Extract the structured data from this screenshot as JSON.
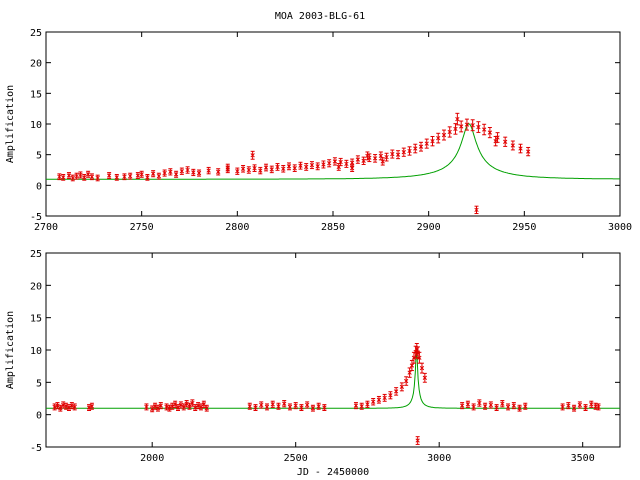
{
  "title": "MOA 2003-BLG-61",
  "colors": {
    "data": "#e00000",
    "model": "#00a000",
    "axis": "#000000"
  },
  "chart_data": [
    {
      "type": "scatter",
      "ylabel": "Amplification",
      "xlabel": "",
      "xlim": [
        2700,
        3000
      ],
      "ylim": [
        -5,
        25
      ],
      "xticks": [
        2700,
        2750,
        2800,
        2850,
        2900,
        2950,
        3000
      ],
      "yticks": [
        -5,
        0,
        5,
        10,
        15,
        20,
        25
      ],
      "model": {
        "t0": 2921,
        "u0": 0.1,
        "tE": 37
      },
      "points": [
        [
          2707,
          1.4
        ],
        [
          2709,
          1.3
        ],
        [
          2712,
          1.6
        ],
        [
          2714,
          1.2
        ],
        [
          2716,
          1.5
        ],
        [
          2718,
          1.7
        ],
        [
          2720,
          1.3
        ],
        [
          2722,
          1.8
        ],
        [
          2724,
          1.4
        ],
        [
          2727,
          1.2
        ],
        [
          2733,
          1.6
        ],
        [
          2737,
          1.3
        ],
        [
          2741,
          1.4
        ],
        [
          2744,
          1.5
        ],
        [
          2748,
          1.6
        ],
        [
          2750,
          1.8
        ],
        [
          2753,
          1.3
        ],
        [
          2756,
          1.9
        ],
        [
          2759,
          1.5
        ],
        [
          2762,
          2.0
        ],
        [
          2765,
          2.2
        ],
        [
          2768,
          1.8
        ],
        [
          2771,
          2.3
        ],
        [
          2774,
          2.5
        ],
        [
          2777,
          2.1
        ],
        [
          2780,
          2.0
        ],
        [
          2785,
          2.4
        ],
        [
          2790,
          2.2
        ],
        [
          2795,
          2.6
        ],
        [
          2800,
          2.3
        ],
        [
          2803,
          2.7
        ],
        [
          2806,
          2.5
        ],
        [
          2809,
          2.8
        ],
        [
          2812,
          2.4
        ],
        [
          2815,
          2.9
        ],
        [
          2818,
          2.6
        ],
        [
          2821,
          3.0
        ],
        [
          2824,
          2.7
        ],
        [
          2827,
          3.1
        ],
        [
          2830,
          2.8
        ],
        [
          2833,
          3.2
        ],
        [
          2836,
          3.0
        ],
        [
          2839,
          3.3
        ],
        [
          2842,
          3.1
        ],
        [
          2845,
          3.4
        ],
        [
          2848,
          3.6
        ],
        [
          2851,
          3.9
        ],
        [
          2854,
          3.8
        ],
        [
          2857,
          3.5
        ],
        [
          2860,
          3.7
        ],
        [
          2863,
          4.2
        ],
        [
          2866,
          4.0
        ],
        [
          2869,
          4.5
        ],
        [
          2872,
          4.4
        ],
        [
          2875,
          4.8
        ],
        [
          2878,
          4.6
        ],
        [
          2881,
          5.1
        ],
        [
          2884,
          5.0
        ],
        [
          2887,
          5.4
        ],
        [
          2890,
          5.6
        ],
        [
          2893,
          6.0
        ],
        [
          2896,
          6.3
        ],
        [
          2899,
          6.8
        ],
        [
          2902,
          7.2
        ],
        [
          2905,
          7.7
        ],
        [
          2908,
          8.2
        ],
        [
          2911,
          8.7
        ],
        [
          2914,
          9.2
        ],
        [
          2917,
          9.6
        ],
        [
          2920,
          9.9
        ],
        [
          2923,
          9.8
        ],
        [
          2926,
          9.5
        ],
        [
          2929,
          9.1
        ],
        [
          2932,
          8.6
        ],
        [
          2936,
          7.8
        ],
        [
          2940,
          7.1
        ],
        [
          2944,
          6.5
        ],
        [
          2948,
          6.0
        ],
        [
          2952,
          5.5
        ],
        [
          2925,
          -4.0
        ],
        [
          2853,
          3.0
        ],
        [
          2860,
          2.8
        ],
        [
          2808,
          4.9
        ],
        [
          2795,
          2.9
        ],
        [
          2868,
          4.8
        ],
        [
          2876,
          3.9
        ],
        [
          2915,
          10.8
        ],
        [
          2935,
          7.2
        ]
      ]
    },
    {
      "type": "scatter",
      "ylabel": "Amplification",
      "xlabel": "JD - 2450000",
      "xlim": [
        1630,
        3630
      ],
      "ylim": [
        -5,
        25
      ],
      "xticks": [
        2000,
        2500,
        3000,
        3500
      ],
      "yticks": [
        -5,
        0,
        5,
        10,
        15,
        20,
        25
      ],
      "model": {
        "t0": 2921,
        "u0": 0.1,
        "tE": 37
      },
      "points": [
        [
          1660,
          1.2
        ],
        [
          1670,
          1.4
        ],
        [
          1680,
          1.0
        ],
        [
          1690,
          1.5
        ],
        [
          1700,
          1.3
        ],
        [
          1710,
          1.1
        ],
        [
          1720,
          1.4
        ],
        [
          1730,
          1.2
        ],
        [
          1780,
          1.1
        ],
        [
          1790,
          1.3
        ],
        [
          1980,
          1.2
        ],
        [
          2000,
          0.9
        ],
        [
          2010,
          1.3
        ],
        [
          2020,
          1.0
        ],
        [
          2030,
          1.4
        ],
        [
          2050,
          1.2
        ],
        [
          2060,
          1.0
        ],
        [
          2070,
          1.3
        ],
        [
          2080,
          1.6
        ],
        [
          2090,
          1.1
        ],
        [
          2100,
          1.5
        ],
        [
          2110,
          1.2
        ],
        [
          2120,
          1.7
        ],
        [
          2130,
          1.3
        ],
        [
          2140,
          1.8
        ],
        [
          2150,
          1.1
        ],
        [
          2160,
          1.4
        ],
        [
          2170,
          1.2
        ],
        [
          2180,
          1.6
        ],
        [
          2190,
          1.0
        ],
        [
          2340,
          1.3
        ],
        [
          2360,
          1.1
        ],
        [
          2380,
          1.5
        ],
        [
          2400,
          1.2
        ],
        [
          2420,
          1.6
        ],
        [
          2440,
          1.3
        ],
        [
          2460,
          1.7
        ],
        [
          2480,
          1.2
        ],
        [
          2500,
          1.4
        ],
        [
          2520,
          1.1
        ],
        [
          2540,
          1.5
        ],
        [
          2560,
          1.0
        ],
        [
          2580,
          1.3
        ],
        [
          2600,
          1.1
        ],
        [
          2710,
          1.4
        ],
        [
          2730,
          1.3
        ],
        [
          2750,
          1.6
        ],
        [
          2770,
          2.0
        ],
        [
          2790,
          2.3
        ],
        [
          2810,
          2.6
        ],
        [
          2830,
          3.0
        ],
        [
          2850,
          3.6
        ],
        [
          2870,
          4.3
        ],
        [
          2885,
          5.2
        ],
        [
          2897,
          6.5
        ],
        [
          2905,
          7.6
        ],
        [
          2912,
          8.8
        ],
        [
          2918,
          9.7
        ],
        [
          2922,
          10.1
        ],
        [
          2926,
          9.6
        ],
        [
          2931,
          8.8
        ],
        [
          2940,
          7.2
        ],
        [
          2950,
          5.7
        ],
        [
          2925,
          -4.0
        ],
        [
          3080,
          1.4
        ],
        [
          3100,
          1.6
        ],
        [
          3120,
          1.2
        ],
        [
          3140,
          1.8
        ],
        [
          3160,
          1.3
        ],
        [
          3180,
          1.5
        ],
        [
          3200,
          1.1
        ],
        [
          3220,
          1.7
        ],
        [
          3240,
          1.2
        ],
        [
          3260,
          1.4
        ],
        [
          3280,
          1.0
        ],
        [
          3300,
          1.3
        ],
        [
          3430,
          1.2
        ],
        [
          3450,
          1.4
        ],
        [
          3470,
          1.0
        ],
        [
          3490,
          1.5
        ],
        [
          3510,
          1.1
        ],
        [
          3530,
          1.6
        ],
        [
          3545,
          1.3
        ],
        [
          3555,
          1.2
        ]
      ]
    }
  ]
}
